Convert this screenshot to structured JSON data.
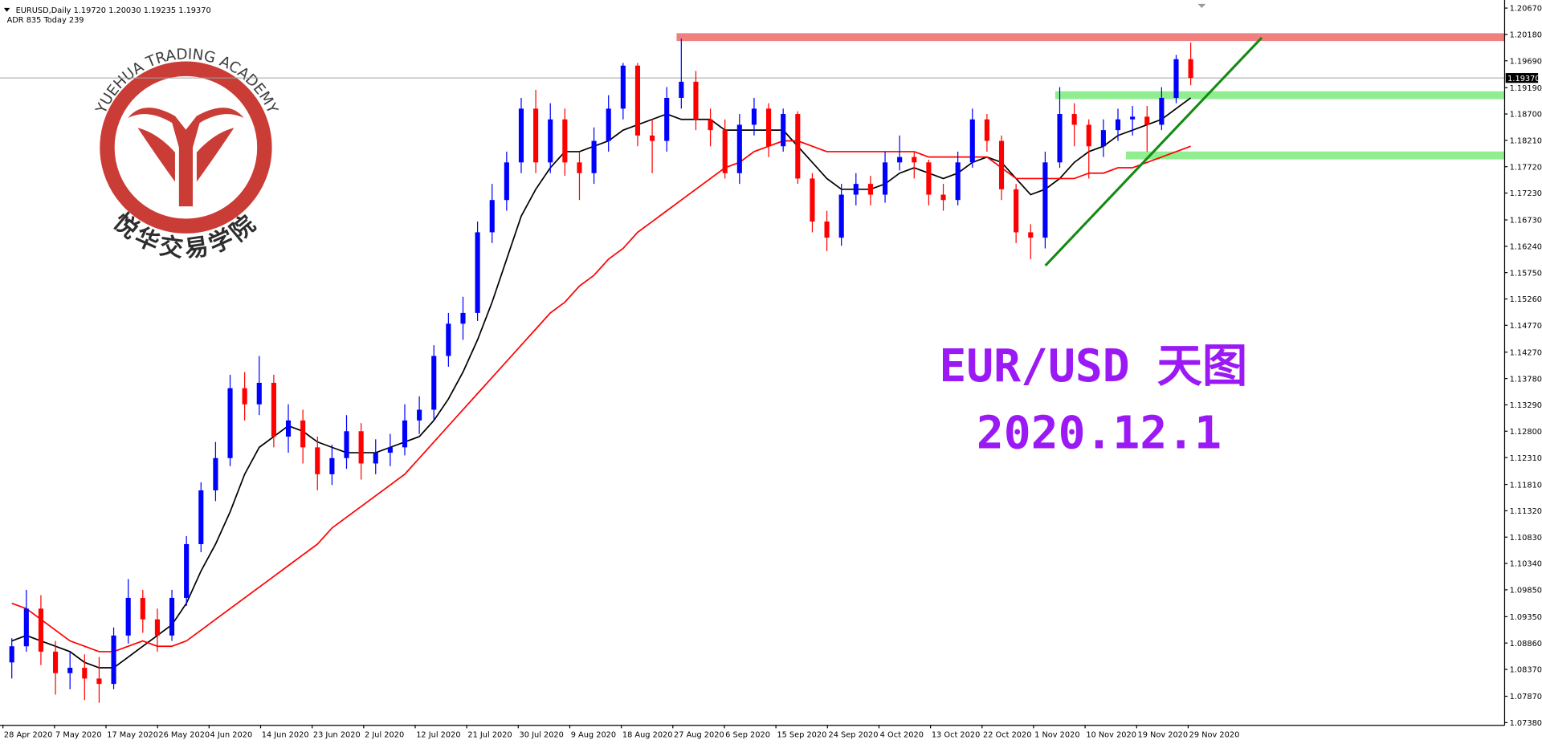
{
  "chart_data": {
    "type": "candlestick",
    "header": "EURUSD,Daily  1.19720 1.20030 1.19235 1.19370",
    "subheader": "ADR 835  Today 239",
    "watermark": "YUEHUA TRADING ACADEMY",
    "watermark_cn": "悦华交易学院",
    "title": "EUR/USD  天图",
    "subtitle": "2020.12.1",
    "up_color": "#0000ff",
    "down_color": "#ff0000",
    "x_labels": [
      "28 Apr 2020",
      "7 May 2020",
      "17 May 2020",
      "26 May 2020",
      "4 Jun 2020",
      "14 Jun 2020",
      "23 Jun 2020",
      "2 Jul 2020",
      "12 Jul 2020",
      "21 Jul 2020",
      "30 Jul 2020",
      "9 Aug 2020",
      "18 Aug 2020",
      "27 Aug 2020",
      "6 Sep 2020",
      "15 Sep 2020",
      "24 Sep 2020",
      "4 Oct 2020",
      "13 Oct 2020",
      "22 Oct 2020",
      "1 Nov 2020",
      "10 Nov 2020",
      "19 Nov 2020",
      "29 Nov 2020"
    ],
    "ylim": [
      1.0733,
      1.2082
    ],
    "yticks": [
      {
        "value": 1.0738,
        "label": "1.07380"
      },
      {
        "value": 1.0787,
        "label": "1.07870"
      },
      {
        "value": 1.0837,
        "label": "1.08370"
      },
      {
        "value": 1.0886,
        "label": "1.08860"
      },
      {
        "value": 1.0935,
        "label": "1.09350"
      },
      {
        "value": 1.0985,
        "label": "1.09850"
      },
      {
        "value": 1.1034,
        "label": "1.10340"
      },
      {
        "value": 1.1083,
        "label": "1.10830"
      },
      {
        "value": 1.1132,
        "label": "1.11320"
      },
      {
        "value": 1.1181,
        "label": "1.11810"
      },
      {
        "value": 1.1231,
        "label": "1.12310"
      },
      {
        "value": 1.128,
        "label": "1.12800"
      },
      {
        "value": 1.1329,
        "label": "1.13290"
      },
      {
        "value": 1.1378,
        "label": "1.13780"
      },
      {
        "value": 1.1427,
        "label": "1.14270"
      },
      {
        "value": 1.1477,
        "label": "1.14770"
      },
      {
        "value": 1.1526,
        "label": "1.15260"
      },
      {
        "value": 1.1575,
        "label": "1.15750"
      },
      {
        "value": 1.1624,
        "label": "1.16240"
      },
      {
        "value": 1.1673,
        "label": "1.16730"
      },
      {
        "value": 1.1723,
        "label": "1.17230"
      },
      {
        "value": 1.1772,
        "label": "1.17720"
      },
      {
        "value": 1.1821,
        "label": "1.18210"
      },
      {
        "value": 1.187,
        "label": "1.18700"
      },
      {
        "value": 1.1919,
        "label": "1.19190"
      },
      {
        "value": 1.1969,
        "label": "1.19690"
      },
      {
        "value": 1.2018,
        "label": "1.20180"
      },
      {
        "value": 1.2067,
        "label": "1.20670"
      }
    ],
    "last_price": {
      "value": 1.1937,
      "label": "1.19370"
    },
    "ohlc": [
      [
        1.085,
        1.0895,
        1.082,
        1.088
      ],
      [
        1.088,
        1.0985,
        1.087,
        1.095
      ],
      [
        1.095,
        1.0975,
        1.0845,
        1.087
      ],
      [
        1.087,
        1.089,
        1.079,
        1.083
      ],
      [
        1.083,
        1.087,
        1.08,
        1.084
      ],
      [
        1.084,
        1.0865,
        1.078,
        1.082
      ],
      [
        1.082,
        1.086,
        1.0775,
        1.081
      ],
      [
        1.081,
        1.0915,
        1.08,
        1.09
      ],
      [
        1.09,
        1.1005,
        1.0885,
        1.097
      ],
      [
        1.097,
        1.0985,
        1.0905,
        1.093
      ],
      [
        1.093,
        1.095,
        1.087,
        1.09
      ],
      [
        1.09,
        1.0985,
        1.089,
        1.097
      ],
      [
        1.097,
        1.1085,
        1.0955,
        1.107
      ],
      [
        1.107,
        1.1185,
        1.1055,
        1.117
      ],
      [
        1.117,
        1.126,
        1.115,
        1.123
      ],
      [
        1.123,
        1.1385,
        1.1215,
        1.136
      ],
      [
        1.136,
        1.139,
        1.13,
        1.133
      ],
      [
        1.133,
        1.142,
        1.131,
        1.137
      ],
      [
        1.137,
        1.1385,
        1.125,
        1.127
      ],
      [
        1.127,
        1.133,
        1.124,
        1.13
      ],
      [
        1.13,
        1.132,
        1.122,
        1.125
      ],
      [
        1.125,
        1.127,
        1.117,
        1.12
      ],
      [
        1.12,
        1.1255,
        1.118,
        1.123
      ],
      [
        1.123,
        1.131,
        1.121,
        1.128
      ],
      [
        1.128,
        1.1295,
        1.119,
        1.122
      ],
      [
        1.122,
        1.1265,
        1.12,
        1.124
      ],
      [
        1.124,
        1.1275,
        1.1215,
        1.125
      ],
      [
        1.125,
        1.133,
        1.1235,
        1.13
      ],
      [
        1.13,
        1.1345,
        1.1275,
        1.132
      ],
      [
        1.132,
        1.144,
        1.13,
        1.142
      ],
      [
        1.142,
        1.15,
        1.14,
        1.148
      ],
      [
        1.148,
        1.153,
        1.145,
        1.15
      ],
      [
        1.15,
        1.167,
        1.1485,
        1.165
      ],
      [
        1.165,
        1.174,
        1.163,
        1.171
      ],
      [
        1.171,
        1.18,
        1.169,
        1.178
      ],
      [
        1.178,
        1.19,
        1.176,
        1.188
      ],
      [
        1.188,
        1.1915,
        1.176,
        1.178
      ],
      [
        1.178,
        1.189,
        1.176,
        1.186
      ],
      [
        1.186,
        1.188,
        1.1755,
        1.178
      ],
      [
        1.178,
        1.18,
        1.171,
        1.176
      ],
      [
        1.176,
        1.1845,
        1.174,
        1.182
      ],
      [
        1.182,
        1.1905,
        1.18,
        1.188
      ],
      [
        1.188,
        1.1965,
        1.186,
        1.196
      ],
      [
        1.196,
        1.1965,
        1.181,
        1.183
      ],
      [
        1.183,
        1.186,
        1.176,
        1.182
      ],
      [
        1.182,
        1.192,
        1.18,
        1.19
      ],
      [
        1.19,
        1.201,
        1.188,
        1.193
      ],
      [
        1.193,
        1.195,
        1.184,
        1.186
      ],
      [
        1.186,
        1.188,
        1.181,
        1.184
      ],
      [
        1.184,
        1.186,
        1.175,
        1.176
      ],
      [
        1.176,
        1.187,
        1.174,
        1.185
      ],
      [
        1.185,
        1.19,
        1.183,
        1.188
      ],
      [
        1.188,
        1.189,
        1.179,
        1.181
      ],
      [
        1.181,
        1.188,
        1.18,
        1.187
      ],
      [
        1.187,
        1.1875,
        1.174,
        1.175
      ],
      [
        1.175,
        1.176,
        1.165,
        1.167
      ],
      [
        1.167,
        1.169,
        1.1615,
        1.164
      ],
      [
        1.164,
        1.174,
        1.1625,
        1.172
      ],
      [
        1.172,
        1.176,
        1.17,
        1.174
      ],
      [
        1.174,
        1.1755,
        1.17,
        1.172
      ],
      [
        1.172,
        1.18,
        1.1705,
        1.178
      ],
      [
        1.178,
        1.183,
        1.1765,
        1.179
      ],
      [
        1.179,
        1.18,
        1.175,
        1.178
      ],
      [
        1.178,
        1.1785,
        1.17,
        1.172
      ],
      [
        1.172,
        1.174,
        1.169,
        1.171
      ],
      [
        1.171,
        1.18,
        1.17,
        1.178
      ],
      [
        1.178,
        1.188,
        1.177,
        1.186
      ],
      [
        1.186,
        1.187,
        1.18,
        1.182
      ],
      [
        1.182,
        1.183,
        1.171,
        1.173
      ],
      [
        1.173,
        1.174,
        1.163,
        1.165
      ],
      [
        1.165,
        1.1665,
        1.16,
        1.164
      ],
      [
        1.164,
        1.18,
        1.162,
        1.178
      ],
      [
        1.178,
        1.192,
        1.177,
        1.187
      ],
      [
        1.187,
        1.189,
        1.181,
        1.185
      ],
      [
        1.185,
        1.186,
        1.175,
        1.181
      ],
      [
        1.181,
        1.186,
        1.179,
        1.184
      ],
      [
        1.184,
        1.188,
        1.182,
        1.186
      ],
      [
        1.186,
        1.1885,
        1.183,
        1.1865
      ],
      [
        1.1865,
        1.1885,
        1.18,
        1.185
      ],
      [
        1.185,
        1.192,
        1.184,
        1.19
      ],
      [
        1.19,
        1.198,
        1.189,
        1.1972
      ],
      [
        1.1972,
        1.2003,
        1.19235,
        1.1937
      ]
    ],
    "series": [
      {
        "color": "#000000",
        "values": [
          1.089,
          1.09,
          1.089,
          1.088,
          1.087,
          1.085,
          1.084,
          1.084,
          1.086,
          1.088,
          1.09,
          1.092,
          1.096,
          1.102,
          1.107,
          1.113,
          1.12,
          1.125,
          1.127,
          1.129,
          1.128,
          1.126,
          1.125,
          1.124,
          1.124,
          1.124,
          1.125,
          1.126,
          1.127,
          1.13,
          1.134,
          1.139,
          1.145,
          1.152,
          1.16,
          1.168,
          1.173,
          1.177,
          1.18,
          1.18,
          1.181,
          1.182,
          1.184,
          1.185,
          1.186,
          1.187,
          1.186,
          1.186,
          1.186,
          1.184,
          1.184,
          1.184,
          1.184,
          1.184,
          1.181,
          1.178,
          1.175,
          1.173,
          1.173,
          1.173,
          1.174,
          1.176,
          1.177,
          1.176,
          1.175,
          1.176,
          1.178,
          1.179,
          1.178,
          1.175,
          1.172,
          1.173,
          1.175,
          1.178,
          1.18,
          1.181,
          1.183,
          1.184,
          1.185,
          1.186,
          1.188,
          1.19
        ]
      },
      {
        "color": "#ff0000",
        "values": [
          1.096,
          1.095,
          1.093,
          1.091,
          1.089,
          1.088,
          1.087,
          1.087,
          1.088,
          1.089,
          1.088,
          1.088,
          1.089,
          1.091,
          1.093,
          1.095,
          1.097,
          1.099,
          1.101,
          1.103,
          1.105,
          1.107,
          1.11,
          1.112,
          1.114,
          1.116,
          1.118,
          1.12,
          1.123,
          1.126,
          1.129,
          1.132,
          1.135,
          1.138,
          1.141,
          1.144,
          1.147,
          1.15,
          1.152,
          1.155,
          1.157,
          1.16,
          1.162,
          1.165,
          1.167,
          1.169,
          1.171,
          1.173,
          1.175,
          1.177,
          1.178,
          1.18,
          1.181,
          1.182,
          1.182,
          1.181,
          1.18,
          1.18,
          1.18,
          1.18,
          1.18,
          1.18,
          1.18,
          1.179,
          1.179,
          1.179,
          1.179,
          1.179,
          1.177,
          1.175,
          1.175,
          1.175,
          1.175,
          1.175,
          1.176,
          1.176,
          1.177,
          1.177,
          1.178,
          1.179,
          1.18,
          1.181
        ]
      }
    ],
    "zones": [
      {
        "level": 1.2013,
        "color": "#f08080"
      },
      {
        "level": 1.1905,
        "color": "#90ee90"
      },
      {
        "level": 1.1793,
        "color": "#90ee90"
      }
    ],
    "trendline": {
      "color": "#138a13",
      "values": [
        1.1588,
        1.2012
      ]
    }
  }
}
